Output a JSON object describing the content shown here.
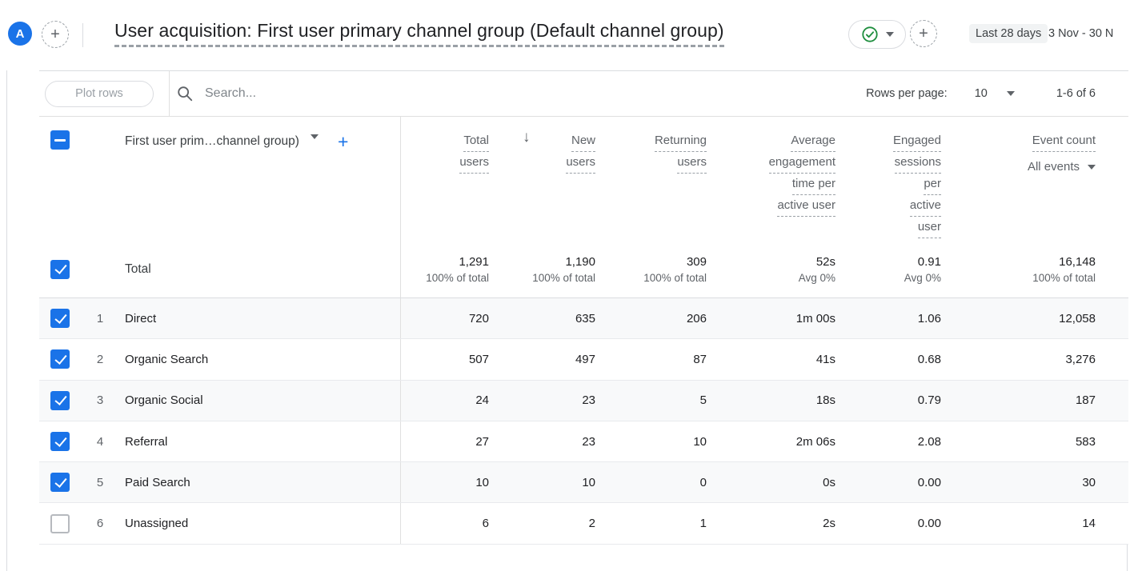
{
  "header": {
    "avatar_letter": "A",
    "title": "User acquisition: First user primary channel group (Default channel group)",
    "date_range_label": "Last 28 days",
    "date_range_value": "3 Nov - 30 N"
  },
  "icons": {
    "add": "+",
    "sort_desc": "↓"
  },
  "toolbar": {
    "plot_rows_label": "Plot rows",
    "search_placeholder": "Search...",
    "rows_per_page_label": "Rows per page:",
    "rows_per_page_value": "10",
    "range_label": "1-6 of 6"
  },
  "table": {
    "dimension_header": "First user prim…channel group)",
    "columns": [
      {
        "key": "total-users",
        "lines": [
          "Total",
          "users"
        ],
        "sorted": true
      },
      {
        "key": "new-users",
        "lines": [
          "New",
          "users"
        ]
      },
      {
        "key": "returning-users",
        "lines": [
          "Returning",
          "users"
        ]
      },
      {
        "key": "avg-engagement-time",
        "lines": [
          "Average",
          "engagement",
          "time per",
          "active user"
        ]
      },
      {
        "key": "engaged-sessions-per-user",
        "lines": [
          "Engaged",
          "sessions",
          "per",
          "active",
          "user"
        ]
      },
      {
        "key": "event-count",
        "lines": [
          "Event count"
        ],
        "filter": "All events"
      }
    ],
    "total_row": {
      "label": "Total",
      "checked": true,
      "values": [
        {
          "primary": "1,291",
          "secondary": "100% of total"
        },
        {
          "primary": "1,190",
          "secondary": "100% of total"
        },
        {
          "primary": "309",
          "secondary": "100% of total"
        },
        {
          "primary": "52s",
          "secondary": "Avg 0%"
        },
        {
          "primary": "0.91",
          "secondary": "Avg 0%"
        },
        {
          "primary": "16,148",
          "secondary": "100% of total"
        }
      ]
    },
    "rows": [
      {
        "index": "1",
        "name": "Direct",
        "checked": true,
        "values": [
          "720",
          "635",
          "206",
          "1m 00s",
          "1.06",
          "12,058"
        ]
      },
      {
        "index": "2",
        "name": "Organic Search",
        "checked": true,
        "values": [
          "507",
          "497",
          "87",
          "41s",
          "0.68",
          "3,276"
        ]
      },
      {
        "index": "3",
        "name": "Organic Social",
        "checked": true,
        "values": [
          "24",
          "23",
          "5",
          "18s",
          "0.79",
          "187"
        ]
      },
      {
        "index": "4",
        "name": "Referral",
        "checked": true,
        "values": [
          "27",
          "23",
          "10",
          "2m 06s",
          "2.08",
          "583"
        ]
      },
      {
        "index": "5",
        "name": "Paid Search",
        "checked": true,
        "values": [
          "10",
          "10",
          "0",
          "0s",
          "0.00",
          "30"
        ]
      },
      {
        "index": "6",
        "name": "Unassigned",
        "checked": false,
        "values": [
          "6",
          "2",
          "1",
          "2s",
          "0.00",
          "14"
        ]
      }
    ]
  },
  "colors": {
    "accent_blue": "#1a73e8",
    "check_green": "#1e8e3e",
    "header_text": "#5f6368",
    "primary_text": "#202124",
    "alt_row_bg": "#f8f9fa",
    "divider": "#e0e0e0"
  }
}
